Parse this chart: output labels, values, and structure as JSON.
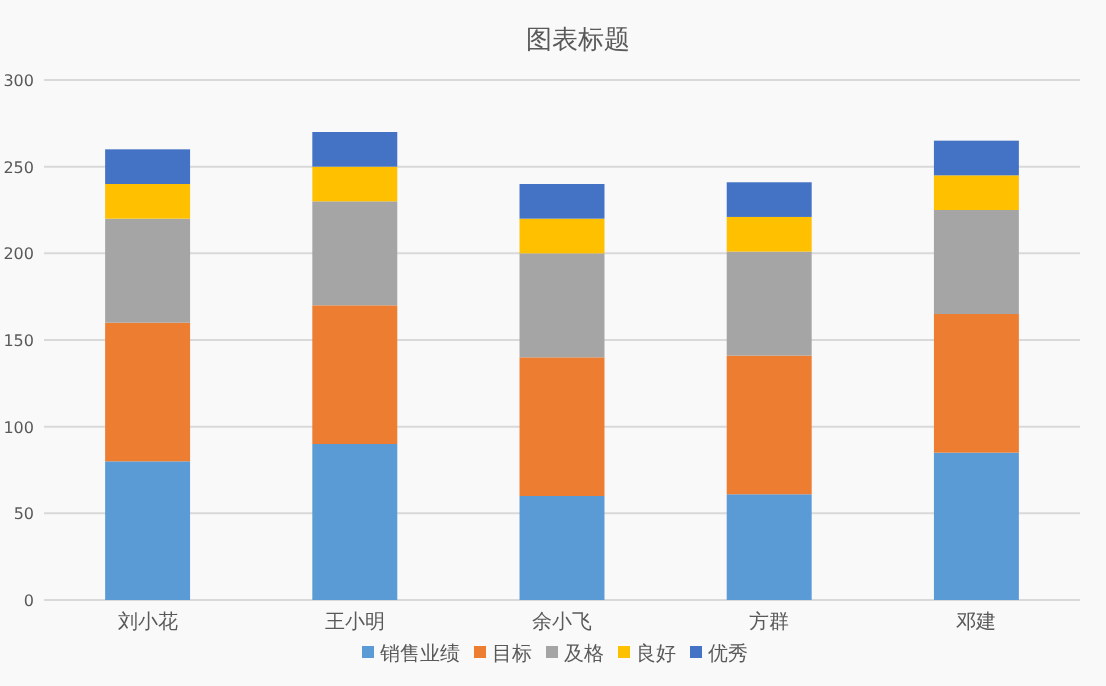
{
  "chart_data": {
    "type": "bar",
    "title": "图表标题",
    "stacked": true,
    "categories": [
      "刘小花",
      "王小明",
      "余小飞",
      "方群",
      "邓建"
    ],
    "series": [
      {
        "name": "销售业绩",
        "color": "#5b9bd5",
        "values": [
          80,
          90,
          60,
          61,
          85
        ]
      },
      {
        "name": "目标",
        "color": "#ed7d31",
        "values": [
          80,
          80,
          80,
          80,
          80
        ]
      },
      {
        "name": "及格",
        "color": "#a5a5a5",
        "values": [
          60,
          60,
          60,
          60,
          60
        ]
      },
      {
        "name": "良好",
        "color": "#ffc000",
        "values": [
          20,
          20,
          20,
          20,
          20
        ]
      },
      {
        "name": "优秀",
        "color": "#4472c4",
        "values": [
          20,
          20,
          20,
          20,
          20
        ]
      }
    ],
    "ylim": [
      0,
      300
    ],
    "yticks": [
      0,
      50,
      100,
      150,
      200,
      250,
      300
    ],
    "grid": "y",
    "legend": "bottom"
  }
}
